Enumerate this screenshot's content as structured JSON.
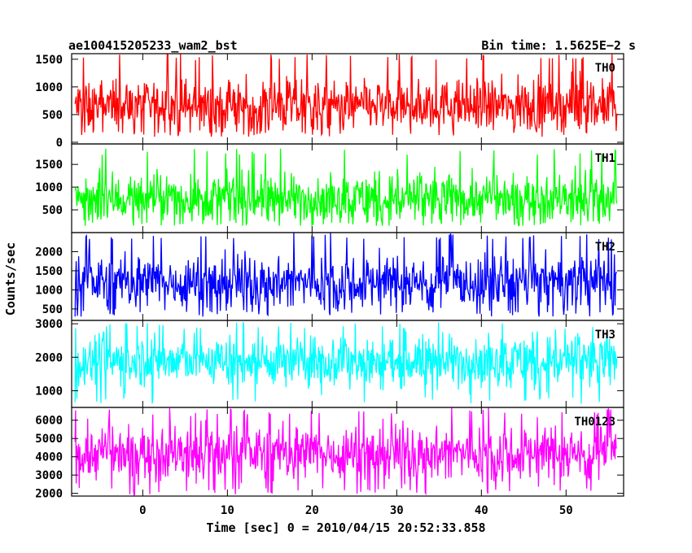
{
  "header": {
    "title": "ae100415205233_wam2_bst",
    "bin_time": "Bin time: 1.5625E−2 s"
  },
  "axes": {
    "xlabel": "Time [sec] 0 = 2010/04/15 20:52:33.858",
    "ylabel": "Counts/sec"
  },
  "chart_data": [
    {
      "type": "line",
      "name": "TH0",
      "color": "#ff0000",
      "xlim": [
        -8.4,
        56.8
      ],
      "ylim": [
        -30,
        1600
      ],
      "x_range": [
        -8.0,
        56.0
      ],
      "yticks": [
        0,
        500,
        1000,
        1500
      ],
      "signal_mean": 650,
      "signal_min": 100,
      "signal_max": 1600
    },
    {
      "type": "line",
      "name": "TH1",
      "color": "#00ff00",
      "xlim": [
        -8.4,
        56.8
      ],
      "ylim": [
        0,
        1950
      ],
      "x_range": [
        -8.0,
        56.0
      ],
      "yticks": [
        500,
        1000,
        1500
      ],
      "signal_mean": 750,
      "signal_min": 150,
      "signal_max": 1850
    },
    {
      "type": "line",
      "name": "TH2",
      "color": "#0000ff",
      "xlim": [
        -8.4,
        56.8
      ],
      "ylim": [
        200,
        2500
      ],
      "x_range": [
        -8.0,
        56.0
      ],
      "yticks": [
        500,
        1000,
        1500,
        2000
      ],
      "signal_mean": 1200,
      "signal_min": 300,
      "signal_max": 2500
    },
    {
      "type": "line",
      "name": "TH3",
      "color": "#00ffff",
      "xlim": [
        -8.4,
        56.8
      ],
      "ylim": [
        500,
        3100
      ],
      "x_range": [
        -8.0,
        56.0
      ],
      "yticks": [
        1000,
        2000,
        3000
      ],
      "signal_mean": 1900,
      "signal_min": 600,
      "signal_max": 3050
    },
    {
      "type": "line",
      "name": "TH0123",
      "color": "#ff00ff",
      "xlim": [
        -8.4,
        56.8
      ],
      "ylim": [
        1850,
        6700
      ],
      "x_range": [
        -8.0,
        56.0
      ],
      "yticks": [
        2000,
        3000,
        4000,
        5000,
        6000
      ],
      "signal_mean": 4200,
      "signal_min": 1900,
      "signal_max": 6700
    }
  ],
  "xticks": [
    0,
    10,
    20,
    30,
    40,
    50
  ]
}
